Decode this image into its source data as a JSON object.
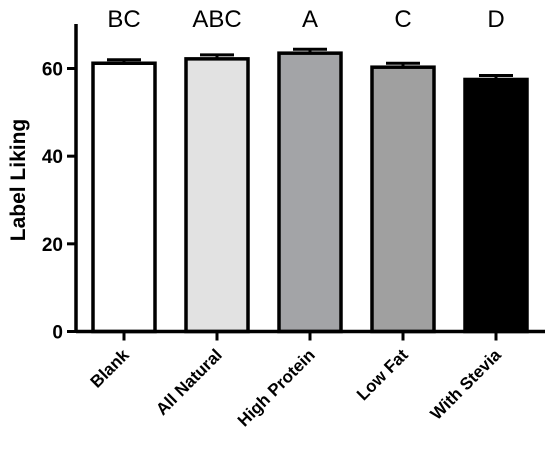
{
  "chart_data": {
    "type": "bar",
    "title": "",
    "xlabel": "",
    "ylabel": "Label Liking",
    "ylim": [
      0,
      70
    ],
    "yticks": [
      0,
      20,
      40,
      60
    ],
    "grid": false,
    "categories": [
      "Blank",
      "All Natural",
      "High Protein",
      "Low Fat",
      "With Stevia"
    ],
    "values": [
      61.2,
      62.2,
      63.5,
      60.3,
      57.5
    ],
    "errors": [
      0.8,
      0.9,
      0.9,
      0.9,
      0.9
    ],
    "annotations": [
      "BC",
      "ABC",
      "A",
      "C",
      "D"
    ],
    "colors": [
      "#ffffff",
      "#e2e2e2",
      "#a3a4a7",
      "#a0a0a0",
      "#000000"
    ]
  }
}
